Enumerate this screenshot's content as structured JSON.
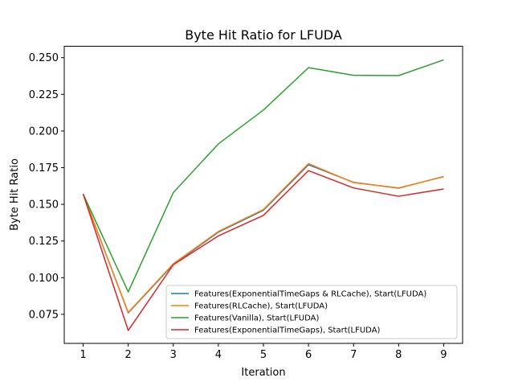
{
  "chart_data": {
    "type": "line",
    "title": "Byte Hit Ratio for LFUDA",
    "xlabel": "Iteration",
    "ylabel": "Byte Hit Ratio",
    "x": [
      1,
      2,
      3,
      4,
      5,
      6,
      7,
      8,
      9
    ],
    "xlim": [
      0.58,
      9.42
    ],
    "ylim": [
      0.0552,
      0.2578
    ],
    "xticks": [
      "1",
      "2",
      "3",
      "4",
      "5",
      "6",
      "7",
      "8",
      "9"
    ],
    "yticks": [
      "0.075",
      "0.100",
      "0.125",
      "0.150",
      "0.175",
      "0.200",
      "0.225",
      "0.250"
    ],
    "grid": false,
    "legend": "lower-right",
    "series": [
      {
        "name": "Features(ExponentialTimeGaps & RLCache), Start(LFUDA)",
        "color": "#1f77b4",
        "values": [
          0.157,
          0.076,
          0.109,
          0.131,
          0.146,
          0.177,
          0.165,
          0.161,
          0.169
        ]
      },
      {
        "name": "Features(RLCache), Start(LFUDA)",
        "color": "#ff7f0e",
        "values": [
          0.157,
          0.0763,
          0.1095,
          0.1315,
          0.1465,
          0.1778,
          0.1648,
          0.1612,
          0.1688
        ]
      },
      {
        "name": "Features(Vanilla), Start(LFUDA)",
        "color": "#2ca02c",
        "values": [
          0.157,
          0.0903,
          0.158,
          0.1912,
          0.2143,
          0.2432,
          0.238,
          0.2378,
          0.2485
        ]
      },
      {
        "name": "Features(ExponentialTimeGaps), Start(LFUDA)",
        "color": "#d62728",
        "values": [
          0.157,
          0.064,
          0.1088,
          0.1285,
          0.1425,
          0.173,
          0.1612,
          0.1555,
          0.1605
        ]
      }
    ]
  }
}
